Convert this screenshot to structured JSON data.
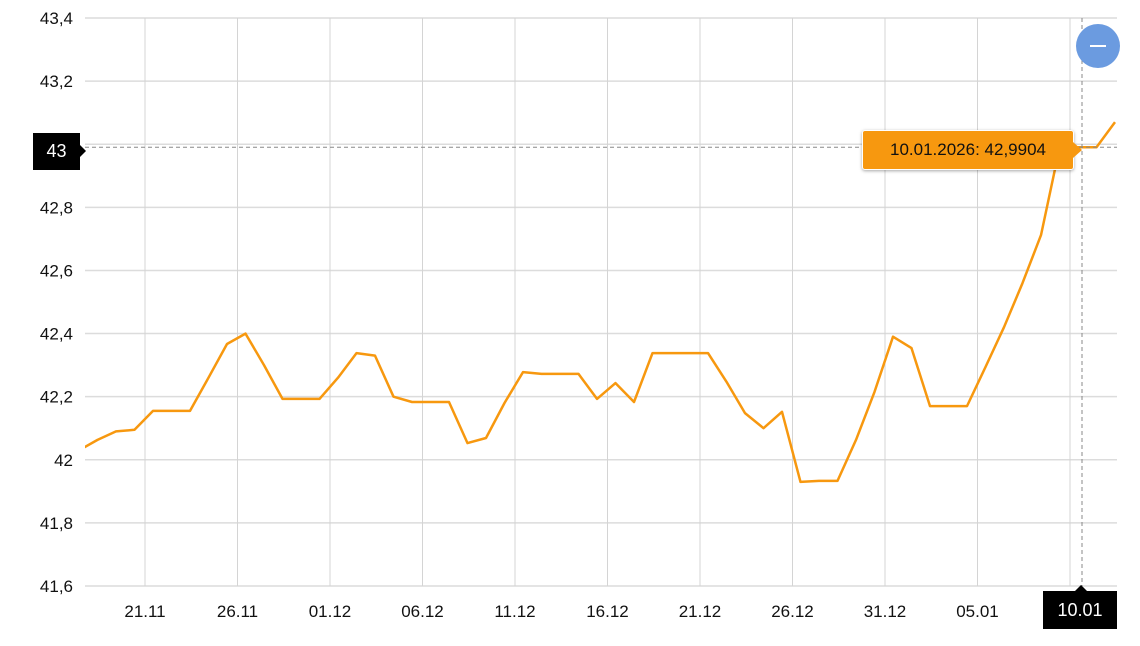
{
  "chart_data": {
    "type": "line",
    "title": "",
    "xlabel": "",
    "ylabel": "",
    "ylim": [
      41.6,
      43.4
    ],
    "y_ticks": [
      "41,6",
      "41,8",
      "42",
      "42,2",
      "42,4",
      "42,6",
      "42,8",
      "43",
      "43,2",
      "43,4"
    ],
    "x_ticks": [
      "21.11",
      "26.11",
      "01.12",
      "06.12",
      "11.12",
      "16.12",
      "21.12",
      "26.12",
      "31.12",
      "05.01",
      "10.01"
    ],
    "grid": true,
    "line_color": "#f7980f",
    "series": [
      {
        "x": [
          "17.11",
          "18.11",
          "19.11",
          "20.11",
          "21.11",
          "22.11",
          "23.11",
          "24.11",
          "25.11",
          "26.11",
          "27.11",
          "28.11",
          "29.11",
          "30.11",
          "01.12",
          "02.12",
          "03.12",
          "04.12",
          "05.12",
          "06.12",
          "07.12",
          "08.12",
          "09.12",
          "10.12",
          "11.12",
          "12.12",
          "13.12",
          "14.12",
          "15.12",
          "16.12",
          "17.12",
          "18.12",
          "19.12",
          "20.12",
          "21.12",
          "22.12",
          "23.12",
          "24.12",
          "25.12",
          "26.12",
          "27.12",
          "28.12",
          "29.12",
          "30.12",
          "31.12",
          "01.01",
          "02.01",
          "03.01",
          "04.01",
          "05.01",
          "06.01",
          "07.01",
          "08.01",
          "09.01",
          "10.01",
          "11.01",
          "12.01"
        ],
        "values": [
          42.03,
          42.063,
          42.09,
          42.095,
          42.155,
          42.155,
          42.155,
          42.26,
          42.367,
          42.4,
          42.3,
          42.193,
          42.193,
          42.193,
          42.26,
          42.338,
          42.33,
          42.2,
          42.183,
          42.183,
          42.183,
          42.053,
          42.069,
          42.18,
          42.278,
          42.272,
          42.272,
          42.272,
          42.193,
          42.243,
          42.183,
          42.338,
          42.338,
          42.338,
          42.338,
          42.247,
          42.148,
          42.1,
          42.152,
          41.93,
          41.933,
          41.933,
          42.063,
          42.215,
          42.39,
          42.354,
          42.17,
          42.17,
          42.17,
          42.294,
          42.42,
          42.56,
          42.712,
          42.988,
          42.9904,
          42.9904,
          43.07
        ]
      }
    ],
    "crosshair": {
      "date_label": "10.01",
      "value_label": "43",
      "tooltip": "10.01.2026: 42,9904"
    }
  },
  "controls": {
    "zoom_out_icon": "minus-icon",
    "zoom_out_color": "#6b9be0"
  }
}
